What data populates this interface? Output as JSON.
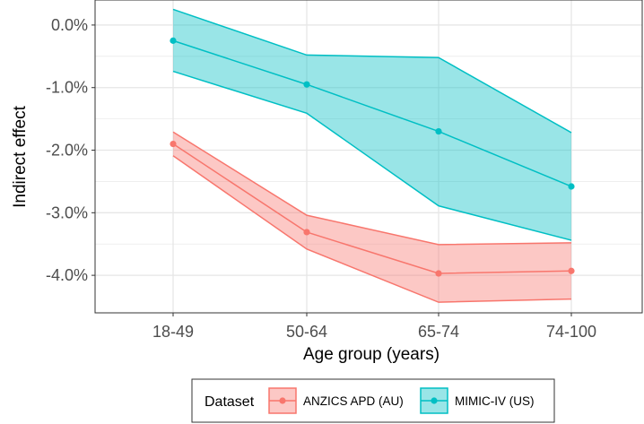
{
  "chart_data": {
    "type": "line",
    "xlabel": "Age group (years)",
    "ylabel": "Indirect effect",
    "categories": [
      "18-49",
      "50-64",
      "65-74",
      "74-100"
    ],
    "ylim": [
      -0.046,
      0.004
    ],
    "yticks": [
      0.0,
      -0.01,
      -0.02,
      -0.03,
      -0.04
    ],
    "ytick_labels": [
      "0.0%",
      "-1.0%",
      "-2.0%",
      "-3.0%",
      "-4.0%"
    ],
    "grid": true,
    "legend": {
      "title": "Dataset",
      "position": "bottom"
    },
    "series": [
      {
        "name": "ANZICS APD (AU)",
        "color": "#F8766D",
        "fill": "#F8766D",
        "values": [
          -0.019,
          -0.0331,
          -0.0397,
          -0.0393
        ],
        "lower": [
          -0.0209,
          -0.0358,
          -0.0443,
          -0.0438
        ],
        "upper": [
          -0.0171,
          -0.0304,
          -0.0351,
          -0.0348
        ]
      },
      {
        "name": "MIMIC-IV (US)",
        "color": "#00BFC4",
        "fill": "#00BFC4",
        "values": [
          -0.0025,
          -0.0095,
          -0.017,
          -0.0258
        ],
        "lower": [
          -0.0074,
          -0.0141,
          -0.0289,
          -0.0344
        ],
        "upper": [
          0.0025,
          -0.0048,
          -0.0052,
          -0.0172
        ]
      }
    ]
  }
}
